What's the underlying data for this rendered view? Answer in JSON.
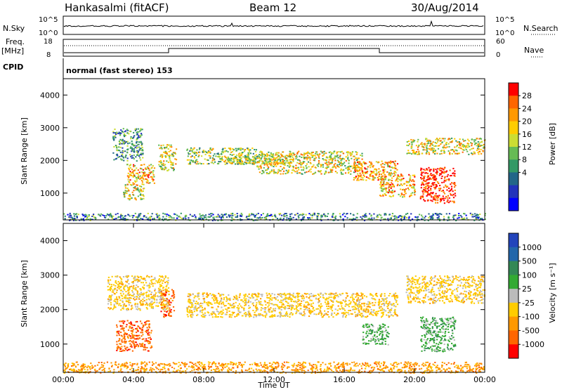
{
  "header": {
    "station": "Hankasalmi (fitACF)",
    "beam": "Beam 12",
    "date": "30/Aug/2014"
  },
  "strip": {
    "nsky_label": "N.Sky",
    "nsky_ticks": [
      "10^5",
      "10^0"
    ],
    "nsearch_label": "N.Search",
    "nsearch_ticks": [
      "10^5",
      "10^0"
    ],
    "freq_label": "Freq.",
    "freq_unit": "[MHz]",
    "freq_ticks": [
      "18",
      "8"
    ],
    "nave_label": "Nave",
    "nave_ticks": [
      "60",
      "0"
    ],
    "cpid_label": "CPID",
    "cpid_text": "normal (fast stereo) 153"
  },
  "chart_data": [
    {
      "type": "heatmap",
      "name": "power",
      "ylabel": "Slant Range [km]",
      "yticks": [
        "4000",
        "3000",
        "2000",
        "1000"
      ],
      "ylim": [
        180,
        4500
      ],
      "xlim": [
        0,
        24
      ],
      "colorbar": {
        "label": "Power [dB]",
        "ticks": [
          "28",
          "24",
          "20",
          "16",
          "12",
          "8",
          "4"
        ],
        "colors": [
          "#ff0000",
          "#ff6600",
          "#ff9900",
          "#ffcc00",
          "#ccdd33",
          "#66bb55",
          "#339966",
          "#226688",
          "#2233bb",
          "#0000ff"
        ]
      },
      "regions": [
        {
          "t0": 2.8,
          "t1": 4.5,
          "r0": 2000,
          "r1": 3000,
          "level": 0.35
        },
        {
          "t0": 3.6,
          "t1": 5.2,
          "r0": 1300,
          "r1": 1900,
          "level": 0.7
        },
        {
          "t0": 3.4,
          "t1": 4.6,
          "r0": 800,
          "r1": 1300,
          "level": 0.6
        },
        {
          "t0": 5.4,
          "t1": 6.4,
          "r0": 1700,
          "r1": 2500,
          "level": 0.6
        },
        {
          "t0": 7.0,
          "t1": 11.0,
          "r0": 1900,
          "r1": 2400,
          "level": 0.5
        },
        {
          "t0": 9.0,
          "t1": 13.0,
          "r0": 1900,
          "r1": 2200,
          "level": 0.55
        },
        {
          "t0": 11.0,
          "t1": 17.0,
          "r0": 1600,
          "r1": 2300,
          "level": 0.6
        },
        {
          "t0": 16.5,
          "t1": 19.0,
          "r0": 1400,
          "r1": 2000,
          "level": 0.7
        },
        {
          "t0": 18.0,
          "t1": 20.0,
          "r0": 900,
          "r1": 1600,
          "level": 0.7
        },
        {
          "t0": 19.5,
          "t1": 24.0,
          "r0": 2200,
          "r1": 2700,
          "level": 0.6
        },
        {
          "t0": 20.3,
          "t1": 22.3,
          "r0": 700,
          "r1": 1800,
          "level": 0.95
        },
        {
          "t0": 0.0,
          "t1": 24.0,
          "r0": 180,
          "r1": 400,
          "level": 0.3
        }
      ]
    },
    {
      "type": "heatmap",
      "name": "velocity",
      "ylabel": "Slant Range [km]",
      "xlabel": "Time UT",
      "yticks": [
        "4000",
        "3000",
        "2000",
        "1000"
      ],
      "xticks": [
        "00:00",
        "04:00",
        "08:00",
        "12:00",
        "16:00",
        "20:00",
        "00:00"
      ],
      "ylim": [
        180,
        4500
      ],
      "xlim": [
        0,
        24
      ],
      "colorbar": {
        "label": "Velocity [m s⁻¹]",
        "ticks": [
          "1000",
          "500",
          "100",
          "25",
          "-25",
          "-100",
          "-500",
          "-1000"
        ],
        "colors": [
          "#2244bb",
          "#2266aa",
          "#338855",
          "#33aa33",
          "#bbbbbb",
          "#ffcc00",
          "#ff9900",
          "#ff6600",
          "#ff0000"
        ]
      },
      "regions": [
        {
          "t0": 3.0,
          "t1": 5.0,
          "r0": 800,
          "r1": 1700,
          "vel": "-500"
        },
        {
          "t0": 5.5,
          "t1": 6.3,
          "r0": 1800,
          "r1": 2600,
          "vel": "-500"
        },
        {
          "t0": 2.5,
          "t1": 6.0,
          "r0": 2000,
          "r1": 3000,
          "vel": "-25"
        },
        {
          "t0": 7.0,
          "t1": 19.0,
          "r0": 1800,
          "r1": 2500,
          "vel": "-25"
        },
        {
          "t0": 17.0,
          "t1": 18.5,
          "r0": 1000,
          "r1": 1600,
          "vel": "100"
        },
        {
          "t0": 20.3,
          "t1": 22.3,
          "r0": 800,
          "r1": 1800,
          "vel": "100"
        },
        {
          "t0": 19.5,
          "t1": 24.0,
          "r0": 2200,
          "r1": 3000,
          "vel": "-25"
        },
        {
          "t0": 0.0,
          "t1": 24.0,
          "r0": 180,
          "r1": 500,
          "vel": "-100"
        }
      ]
    }
  ]
}
